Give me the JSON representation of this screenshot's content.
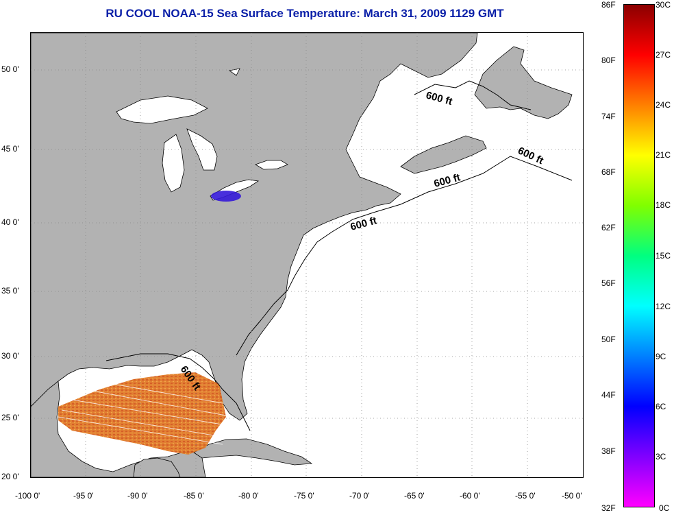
{
  "title": "RU COOL  NOAA-15  Sea Surface Temperature:  March 31, 2009 1129 GMT",
  "colors": {
    "title": "#0a1fa8",
    "land": "#b2b2b2",
    "ocean": "#ffffff",
    "coast": "#000000"
  },
  "axes": {
    "longitude_ticks": [
      "-100 0'",
      "-95 0'",
      "-90 0'",
      "-85 0'",
      "-80 0'",
      "-75 0'",
      "-70 0'",
      "-65 0'",
      "-60 0'",
      "-55 0'",
      "-50 0'"
    ],
    "latitude_ticks": [
      "50 0'",
      "45 0'",
      "40 0'",
      "35 0'",
      "30 0'",
      "25 0'",
      "20 0'"
    ]
  },
  "contour_labels": [
    "600 ft",
    "600 ft",
    "600 ft",
    "600 ft",
    "600 ft"
  ],
  "colorbar": {
    "fahrenheit_labels": [
      "86F",
      "80F",
      "74F",
      "68F",
      "62F",
      "56F",
      "50F",
      "44F",
      "38F",
      "32F"
    ],
    "celsius_labels": [
      "30C",
      "27C",
      "24C",
      "21C",
      "18C",
      "15C",
      "12C",
      "9C",
      "6C",
      "3C",
      "0C"
    ],
    "scale_colors": [
      "#8b0000",
      "#ff0000",
      "#ff8000",
      "#ffff00",
      "#80ff00",
      "#00ff80",
      "#00ffff",
      "#0080ff",
      "#0000ff",
      "#8000ff",
      "#ff00ff"
    ]
  }
}
